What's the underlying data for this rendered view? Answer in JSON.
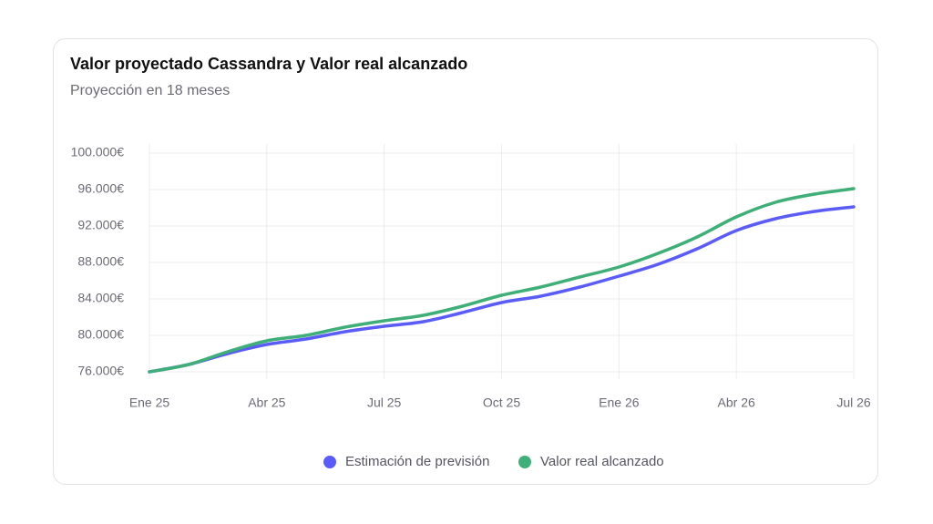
{
  "chart_data": {
    "type": "line",
    "title": "Valor proyectado Cassandra y Valor real alcanzado",
    "subtitle": "Proyección en 18 meses",
    "categories": [
      "Ene 25",
      null,
      null,
      "Abr 25",
      null,
      null,
      "Jul 25",
      null,
      null,
      "Oct 25",
      null,
      null,
      "Ene 26",
      null,
      null,
      "Abr 26",
      null,
      null,
      "Jul 26"
    ],
    "series": [
      {
        "name": "Estimación de previsión",
        "color": "#5b5bf5",
        "values": [
          76000,
          76800,
          78000,
          79000,
          79600,
          80400,
          81000,
          81500,
          82500,
          83600,
          84300,
          85300,
          86500,
          87800,
          89500,
          91500,
          92800,
          93600,
          94100
        ]
      },
      {
        "name": "Valor real alcanzado",
        "color": "#3fae78",
        "values": [
          76000,
          76800,
          78200,
          79400,
          80000,
          80900,
          81600,
          82200,
          83200,
          84400,
          85300,
          86400,
          87500,
          89000,
          90800,
          93000,
          94600,
          95500,
          96100
        ]
      }
    ],
    "ylim": [
      76000,
      100000
    ],
    "yticks": [
      {
        "value": 76000,
        "label": "76.000€"
      },
      {
        "value": 80000,
        "label": "80.000€"
      },
      {
        "value": 84000,
        "label": "84.000€"
      },
      {
        "value": 88000,
        "label": "88.000€"
      },
      {
        "value": 92000,
        "label": "92.000€"
      },
      {
        "value": 96000,
        "label": "96.000€"
      },
      {
        "value": 100000,
        "label": "100.000€"
      }
    ],
    "grid": true
  }
}
